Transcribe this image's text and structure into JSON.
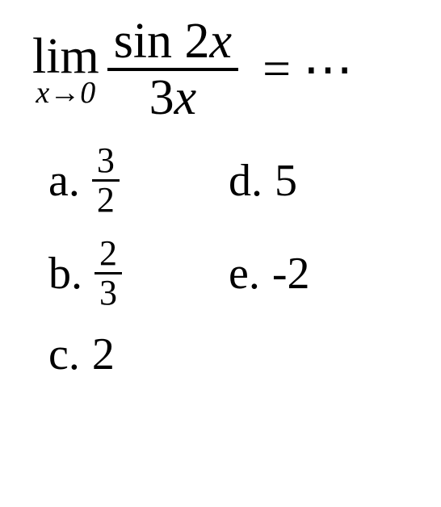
{
  "equation": {
    "lim_text": "lim",
    "lim_var": "x",
    "lim_arrow": "→",
    "lim_target": "0",
    "numerator_func": "sin",
    "numerator_coeff": "2",
    "numerator_var": "x",
    "denominator_coeff": "3",
    "denominator_var": "x",
    "equals": "=",
    "dots": "⋯"
  },
  "choices": {
    "a": {
      "label": "a.",
      "frac_top": "3",
      "frac_bot": "2"
    },
    "b": {
      "label": "b.",
      "frac_top": "2",
      "frac_bot": "3"
    },
    "c": {
      "label": "c.",
      "value": "2"
    },
    "d": {
      "label": "d.",
      "value": "5"
    },
    "e": {
      "label": "e.",
      "value": "-2"
    }
  },
  "style": {
    "background_color": "#ffffff",
    "text_color": "#000000",
    "main_fontsize": 62,
    "sub_fontsize": 38,
    "choice_fontsize": 56,
    "small_frac_fontsize": 44,
    "font_family": "Times New Roman"
  }
}
